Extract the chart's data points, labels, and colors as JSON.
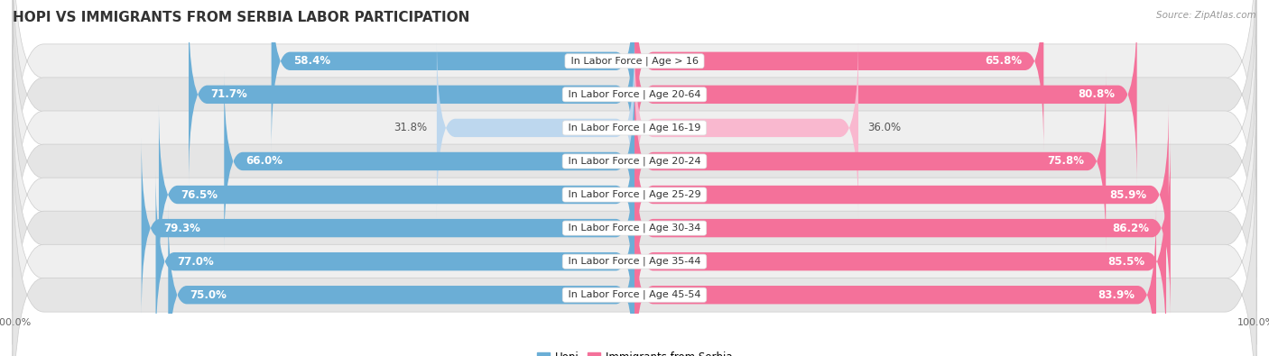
{
  "title": "HOPI VS IMMIGRANTS FROM SERBIA LABOR PARTICIPATION",
  "source": "Source: ZipAtlas.com",
  "categories": [
    "In Labor Force | Age > 16",
    "In Labor Force | Age 20-64",
    "In Labor Force | Age 16-19",
    "In Labor Force | Age 20-24",
    "In Labor Force | Age 25-29",
    "In Labor Force | Age 30-34",
    "In Labor Force | Age 35-44",
    "In Labor Force | Age 45-54"
  ],
  "hopi_values": [
    58.4,
    71.7,
    31.8,
    66.0,
    76.5,
    79.3,
    77.0,
    75.0
  ],
  "serbia_values": [
    65.8,
    80.8,
    36.0,
    75.8,
    85.9,
    86.2,
    85.5,
    83.9
  ],
  "hopi_color": "#6BAED6",
  "hopi_color_light": "#BDD7EE",
  "serbia_color": "#F4719A",
  "serbia_color_light": "#F9B8CF",
  "row_bg_even": "#EFEFEF",
  "row_bg_odd": "#E5E5E5",
  "row_bg_even2": "#F5F5F5",
  "label_dark": "#555555",
  "label_white": "#FFFFFF",
  "max_value": 100.0,
  "title_fontsize": 11,
  "label_fontsize": 8.5,
  "tick_fontsize": 8,
  "legend_fontsize": 8.5,
  "source_fontsize": 7.5
}
